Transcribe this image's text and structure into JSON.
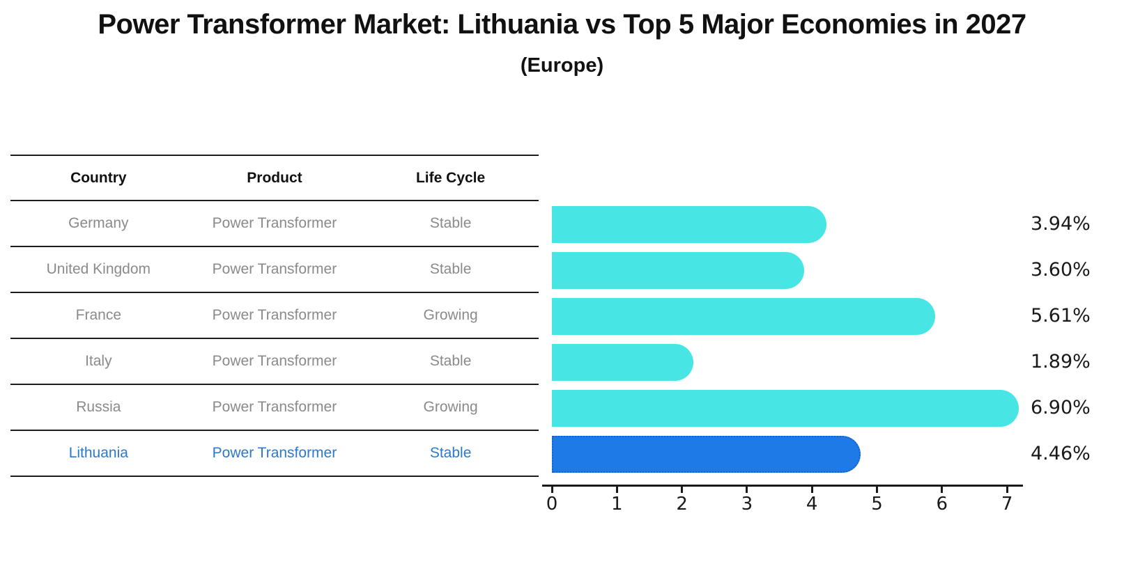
{
  "title": "Power Transformer Market: Lithuania vs Top 5 Major Economies in 2027",
  "subtitle": "(Europe)",
  "table": {
    "headers": [
      "Country",
      "Product",
      "Life Cycle"
    ],
    "rows": [
      {
        "country": "Germany",
        "product": "Power Transformer",
        "life_cycle": "Stable",
        "highlight": false
      },
      {
        "country": "United Kingdom",
        "product": "Power Transformer",
        "life_cycle": "Stable",
        "highlight": false
      },
      {
        "country": "France",
        "product": "Power Transformer",
        "life_cycle": "Growing",
        "highlight": false
      },
      {
        "country": "Italy",
        "product": "Power Transformer",
        "life_cycle": "Stable",
        "highlight": false
      },
      {
        "country": "Russia",
        "product": "Power Transformer",
        "life_cycle": "Growing",
        "highlight": false
      },
      {
        "country": "Lithuania",
        "product": "Power Transformer",
        "life_cycle": "Stable",
        "highlight": true
      }
    ]
  },
  "chart_data": {
    "type": "bar",
    "orientation": "horizontal",
    "title": "Power Transformer Market: Lithuania vs Top 5 Major Economies in 2027",
    "subtitle": "(Europe)",
    "categories": [
      "Germany",
      "United Kingdom",
      "France",
      "Italy",
      "Russia",
      "Lithuania"
    ],
    "values": [
      3.94,
      3.6,
      5.61,
      1.89,
      6.9,
      4.46
    ],
    "value_labels": [
      "3.94%",
      "3.60%",
      "5.61%",
      "1.89%",
      "6.90%",
      "4.46%"
    ],
    "x_tick_labels": [
      "0",
      "1",
      "2",
      "3",
      "4",
      "5",
      "6",
      "7"
    ],
    "xlim": [
      0,
      7.2
    ],
    "grid": false,
    "legend": false,
    "highlight_index": 5,
    "bar_color": "#48e5e5",
    "highlight_bar_color": "#1e7ae6",
    "highlight_border_color": "#1360d0",
    "highlight_text_color": "#2979cc",
    "muted_text_color": "#8a8a8a"
  }
}
